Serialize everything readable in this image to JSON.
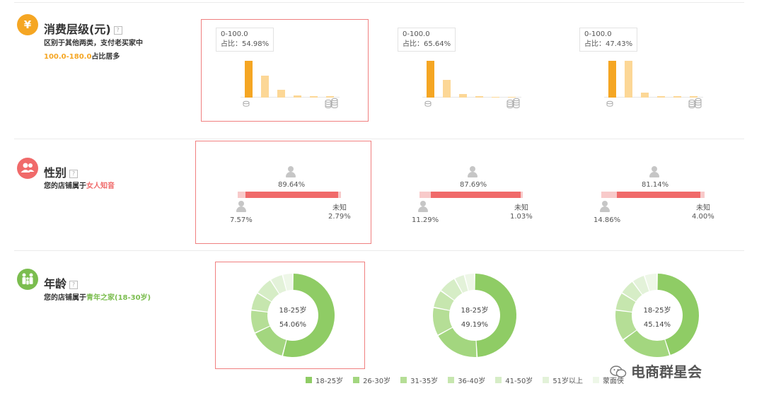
{
  "colors": {
    "orange": "#f5a623",
    "orange_light": "#fcd796",
    "red": "#f06a6a",
    "red_light": "#f8caca",
    "frame": "#f08080"
  },
  "sections": {
    "spend": {
      "title": "消费层级(元)",
      "help": "?",
      "desc_line1": "区别于其他两类，支付老买家中",
      "desc_range": "100.0-180.0",
      "desc_suffix": "占比居多",
      "icon": "yen-icon",
      "panels": [
        {
          "tip_range": "0-100.0",
          "tip_ratio": "占比：54.98%",
          "bars": [
            0.92,
            0.55,
            0.2,
            0.05,
            0.03,
            0.03
          ]
        },
        {
          "tip_range": "0-100.0",
          "tip_ratio": "占比：65.64%",
          "bars": [
            0.92,
            0.45,
            0.09,
            0.03,
            0.02,
            0.02
          ]
        },
        {
          "tip_range": "0-100.0",
          "tip_ratio": "占比：47.43%",
          "bars": [
            0.92,
            0.92,
            0.12,
            0.03,
            0.03,
            0.03
          ]
        }
      ]
    },
    "gender": {
      "title": "性别",
      "help": "?",
      "desc_prefix": "您的店铺属于",
      "desc_hl": "女人知音",
      "icon": "users-icon",
      "unknown_label": "未知",
      "panels": [
        {
          "female": "89.64%",
          "male": "7.57%",
          "unknown": "2.79%",
          "female_share": 0.8964,
          "male_share": 0.0757,
          "unknown_share": 0.0279
        },
        {
          "female": "87.69%",
          "male": "11.29%",
          "unknown": "1.03%",
          "female_share": 0.8769,
          "male_share": 0.1129,
          "unknown_share": 0.0103
        },
        {
          "female": "81.14%",
          "male": "14.86%",
          "unknown": "4.00%",
          "female_share": 0.8114,
          "male_share": 0.1486,
          "unknown_share": 0.04
        }
      ]
    },
    "age": {
      "title": "年龄",
      "help": "?",
      "desc_prefix": "您的店铺属于",
      "desc_hl": "青年之家(18-30岁)",
      "icon": "family-icon",
      "panels": [
        {
          "label": "18-25岁",
          "value": "54.06%",
          "shares": [
            0.5406,
            0.14,
            0.09,
            0.07,
            0.07,
            0.05,
            0.04
          ]
        },
        {
          "label": "18-25岁",
          "value": "49.19%",
          "shares": [
            0.4919,
            0.18,
            0.11,
            0.07,
            0.07,
            0.04,
            0.04
          ]
        },
        {
          "label": "18-25岁",
          "value": "45.14%",
          "shares": [
            0.4514,
            0.2,
            0.12,
            0.07,
            0.06,
            0.05,
            0.05
          ]
        }
      ],
      "legend": [
        {
          "label": "18-25岁",
          "color": "#8fcc65"
        },
        {
          "label": "26-30岁",
          "color": "#a3d67f"
        },
        {
          "label": "31-35岁",
          "color": "#b5de96"
        },
        {
          "label": "36-40岁",
          "color": "#c6e6ae"
        },
        {
          "label": "41-50岁",
          "color": "#d6edc6"
        },
        {
          "label": "51岁以上",
          "color": "#e3f2d9"
        },
        {
          "label": "蒙面侠",
          "color": "#eef7e8"
        }
      ]
    }
  },
  "watermark": "电商群星会"
}
